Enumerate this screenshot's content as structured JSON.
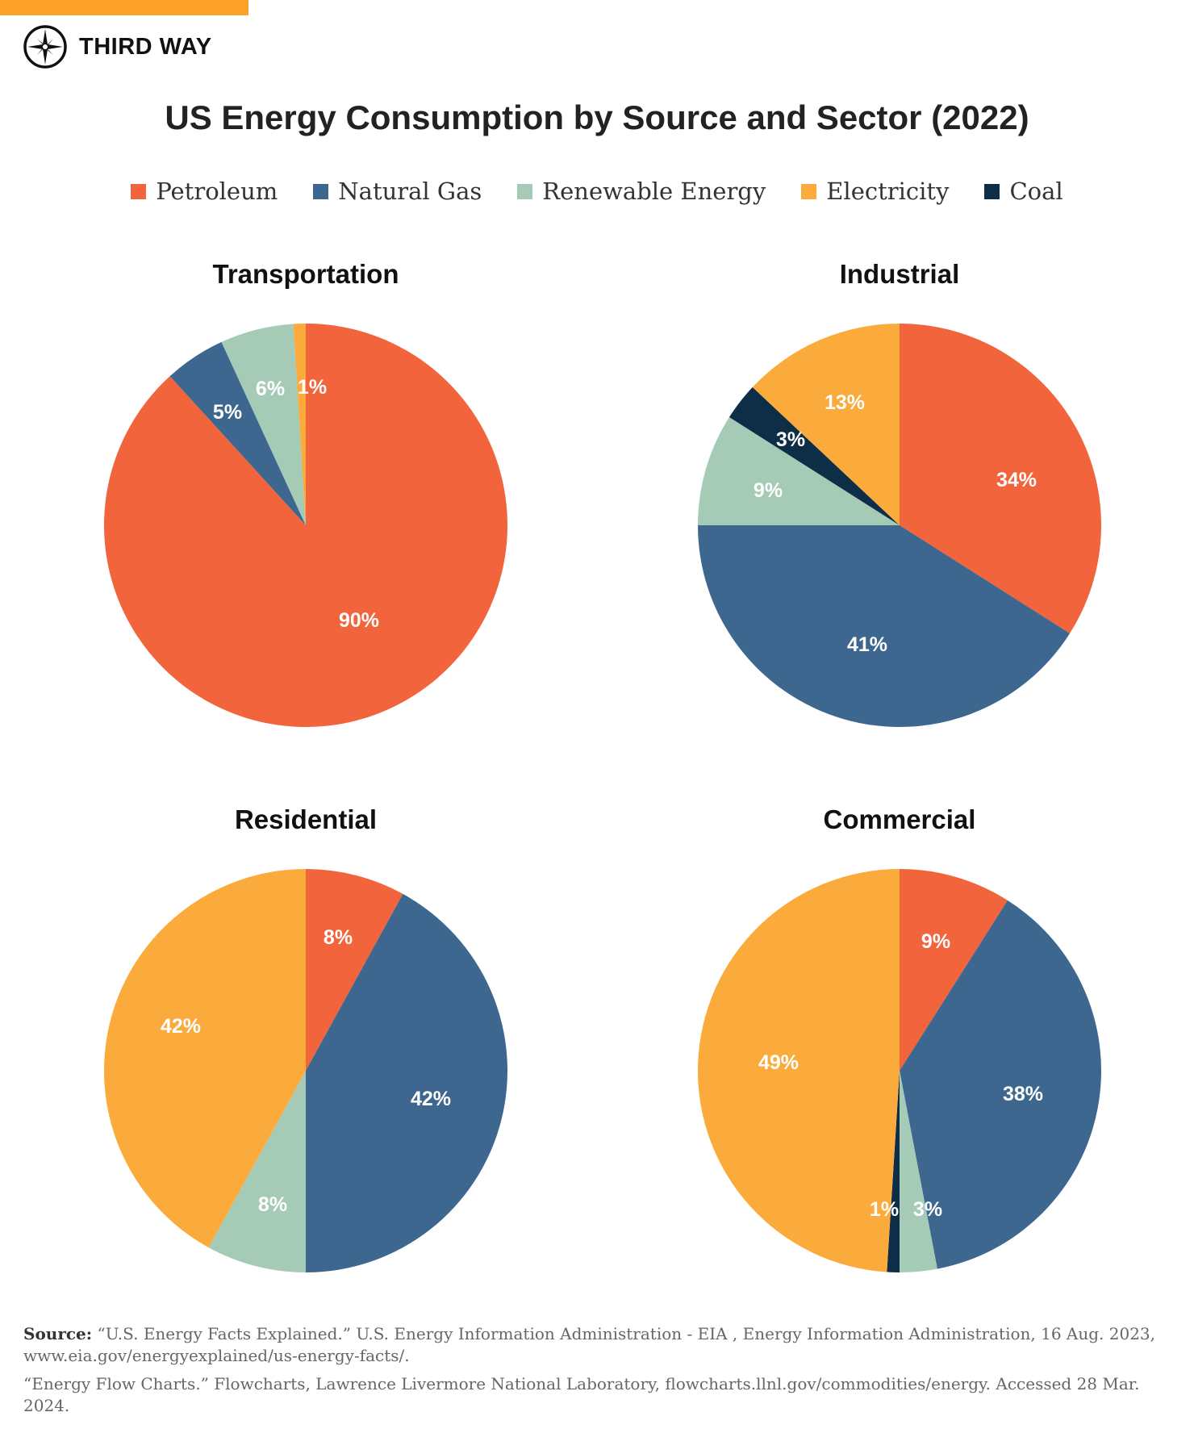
{
  "brand": {
    "name": "THIRD WAY",
    "accent": "#FBA127"
  },
  "chart_data": {
    "title": "US Energy Consumption by Source and Sector (2022)",
    "legend": [
      {
        "name": "Petroleum",
        "color": "#F2643C"
      },
      {
        "name": "Natural Gas",
        "color": "#3E6790"
      },
      {
        "name": "Renewable Energy",
        "color": "#A5CBB7"
      },
      {
        "name": "Electricity",
        "color": "#FBAA3C"
      },
      {
        "name": "Coal",
        "color": "#0D2E46"
      }
    ],
    "legend_position": "top",
    "charts": [
      {
        "type": "pie",
        "title": "Transportation",
        "slices": [
          {
            "name": "Petroleum",
            "value": 90,
            "label": "90%"
          },
          {
            "name": "Natural Gas",
            "value": 5,
            "label": "5%"
          },
          {
            "name": "Renewable Energy",
            "value": 6,
            "label": "6%"
          },
          {
            "name": "Electricity",
            "value": 1,
            "label": "1%"
          }
        ]
      },
      {
        "type": "pie",
        "title": "Industrial",
        "slices": [
          {
            "name": "Petroleum",
            "value": 34,
            "label": "34%"
          },
          {
            "name": "Natural Gas",
            "value": 41,
            "label": "41%"
          },
          {
            "name": "Renewable Energy",
            "value": 9,
            "label": "9%"
          },
          {
            "name": "Coal",
            "value": 3,
            "label": "3%"
          },
          {
            "name": "Electricity",
            "value": 13,
            "label": "13%"
          }
        ]
      },
      {
        "type": "pie",
        "title": "Residential",
        "slices": [
          {
            "name": "Petroleum",
            "value": 8,
            "label": "8%"
          },
          {
            "name": "Natural Gas",
            "value": 42,
            "label": "42%"
          },
          {
            "name": "Renewable Energy",
            "value": 8,
            "label": "8%"
          },
          {
            "name": "Electricity",
            "value": 42,
            "label": "42%"
          }
        ]
      },
      {
        "type": "pie",
        "title": "Commercial",
        "slices": [
          {
            "name": "Petroleum",
            "value": 9,
            "label": "9%"
          },
          {
            "name": "Natural Gas",
            "value": 38,
            "label": "38%"
          },
          {
            "name": "Renewable Energy",
            "value": 3,
            "label": "3%"
          },
          {
            "name": "Coal",
            "value": 1,
            "label": "1%"
          },
          {
            "name": "Electricity",
            "value": 49,
            "label": "49%"
          }
        ]
      }
    ]
  },
  "source": {
    "label": "Source:",
    "line1": "“U.S. Energy Facts Explained.” U.S. Energy Information Administration - EIA , Energy Information Administration, 16 Aug. 2023, www.eia.gov/energyexplained/us-energy-facts/.",
    "line2": "“Energy Flow Charts.” Flowcharts, Lawrence Livermore National Laboratory, flowcharts.llnl.gov/commodities/energy. Accessed 28 Mar. 2024."
  }
}
